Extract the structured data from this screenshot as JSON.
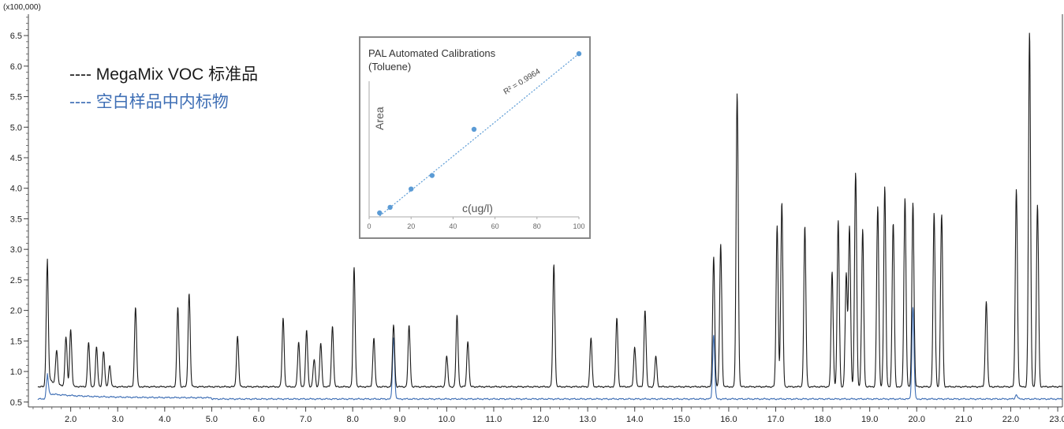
{
  "chart_data": {
    "type": "line",
    "y_scale_label": "(x100,000)",
    "xlim": [
      1.1,
      23.1
    ],
    "ylim": [
      0.42,
      6.85
    ],
    "x_ticks": [
      "2.0",
      "3.0",
      "4.0",
      "5.0",
      "6.0",
      "7.0",
      "8.0",
      "9.0",
      "10.0",
      "11.0",
      "12.0",
      "13.0",
      "14.0",
      "15.0",
      "16.0",
      "17.0",
      "18.0",
      "19.0",
      "20.0",
      "21.0",
      "22.0",
      "23.0"
    ],
    "y_ticks": [
      "0.5",
      "1.0",
      "1.5",
      "2.0",
      "2.5",
      "3.0",
      "3.5",
      "4.0",
      "4.5",
      "5.0",
      "5.5",
      "6.0",
      "6.5"
    ],
    "legend": [
      {
        "label": "---- MegaMix VOC 标准品",
        "color": "#1a1a1a"
      },
      {
        "label": "---- 空白样品中内标物",
        "color": "#3f6fb5"
      }
    ],
    "series": [
      {
        "color": "#1a1a1a",
        "baseline": 0.75,
        "peaks": [
          [
            1.5,
            2.72
          ],
          [
            1.7,
            1.3
          ],
          [
            1.9,
            1.55
          ],
          [
            2.0,
            1.68
          ],
          [
            2.38,
            1.48
          ],
          [
            2.55,
            1.4
          ],
          [
            2.7,
            1.33
          ],
          [
            2.83,
            1.1
          ],
          [
            3.38,
            2.05
          ],
          [
            4.28,
            2.05
          ],
          [
            4.52,
            2.28
          ],
          [
            5.55,
            1.58
          ],
          [
            6.52,
            1.87
          ],
          [
            6.85,
            1.48
          ],
          [
            7.02,
            1.68
          ],
          [
            7.18,
            1.2
          ],
          [
            7.32,
            1.46
          ],
          [
            7.57,
            1.75
          ],
          [
            8.03,
            2.7
          ],
          [
            8.45,
            1.55
          ],
          [
            8.87,
            1.76
          ],
          [
            9.2,
            1.75
          ],
          [
            10.0,
            1.25
          ],
          [
            10.22,
            1.92
          ],
          [
            10.45,
            1.5
          ],
          [
            12.28,
            2.75
          ],
          [
            13.07,
            1.55
          ],
          [
            13.62,
            1.88
          ],
          [
            14.0,
            1.4
          ],
          [
            14.22,
            2.01
          ],
          [
            14.45,
            1.25
          ],
          [
            15.68,
            2.88
          ],
          [
            15.83,
            3.08
          ],
          [
            16.18,
            5.55
          ],
          [
            17.03,
            3.39
          ],
          [
            17.13,
            3.76
          ],
          [
            17.62,
            3.37
          ],
          [
            18.2,
            2.64
          ],
          [
            18.33,
            3.47
          ],
          [
            18.5,
            2.59
          ],
          [
            18.57,
            3.37
          ],
          [
            18.7,
            4.25
          ],
          [
            18.85,
            3.32
          ],
          [
            19.17,
            3.7
          ],
          [
            19.32,
            4.02
          ],
          [
            19.5,
            3.43
          ],
          [
            19.75,
            3.84
          ],
          [
            19.92,
            3.77
          ],
          [
            20.37,
            3.59
          ],
          [
            20.53,
            3.57
          ],
          [
            21.48,
            2.15
          ],
          [
            22.12,
            3.99
          ],
          [
            22.4,
            6.55
          ],
          [
            22.57,
            3.72
          ]
        ]
      },
      {
        "color": "#3f6fb5",
        "baseline": 0.55,
        "peaks": [
          [
            1.5,
            0.88
          ],
          [
            8.87,
            1.55
          ],
          [
            15.68,
            1.6
          ],
          [
            19.92,
            2.05
          ],
          [
            22.12,
            0.62
          ]
        ]
      }
    ],
    "inset": {
      "type": "scatter",
      "title_line1": "PAL Automated Calibrations",
      "title_line2": "(Toluene)",
      "xlabel": "c(ug/l)",
      "ylabel": "Area",
      "r2_label": "R² = 0.9964",
      "x_ticks": [
        "0",
        "20",
        "40",
        "60",
        "80",
        "100"
      ],
      "xlim": [
        0,
        100
      ],
      "points": [
        [
          5,
          0.05
        ],
        [
          10,
          0.12
        ],
        [
          20,
          0.35
        ],
        [
          30,
          0.52
        ],
        [
          50,
          1.1
        ],
        [
          100,
          2.05
        ]
      ],
      "ylim": [
        0,
        2.15
      ],
      "point_color": "#5b9bd5"
    }
  }
}
